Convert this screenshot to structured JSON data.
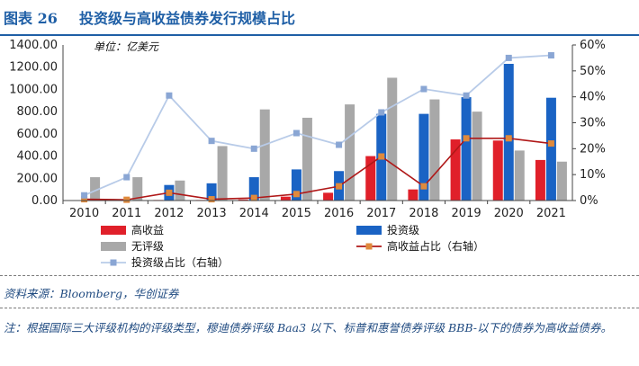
{
  "figure": {
    "number": "图表 26",
    "title": "投资级与高收益债券发行规模占比"
  },
  "chart_data": {
    "type": "bar",
    "unit_label": "单位：亿美元",
    "categories": [
      "2010",
      "2011",
      "2012",
      "2013",
      "2014",
      "2015",
      "2016",
      "2017",
      "2018",
      "2019",
      "2020",
      "2021"
    ],
    "ylim_left": [
      0,
      1400
    ],
    "ylim_right": [
      0,
      0.6
    ],
    "y_ticks_left": [
      "0.00",
      "200.00",
      "400.00",
      "600.00",
      "800.00",
      "1000.00",
      "1200.00",
      "1400.00"
    ],
    "y_ticks_right": [
      "0%",
      "10%",
      "20%",
      "30%",
      "40%",
      "50%",
      "60%"
    ],
    "series": [
      {
        "name": "高收益",
        "kind": "bar",
        "axis": "left",
        "color": "#e0202a",
        "values": [
          0,
          5,
          5,
          5,
          10,
          35,
          70,
          400,
          100,
          550,
          540,
          365
        ]
      },
      {
        "name": "投资级",
        "kind": "bar",
        "axis": "left",
        "color": "#1a63c4",
        "values": [
          0,
          5,
          140,
          155,
          210,
          280,
          265,
          780,
          780,
          930,
          1230,
          925
        ]
      },
      {
        "name": "无评级",
        "kind": "bar",
        "axis": "left",
        "color": "#a8a8a8",
        "values": [
          210,
          210,
          180,
          490,
          820,
          745,
          865,
          1105,
          910,
          800,
          450,
          350
        ]
      },
      {
        "name": "高收益占比（右轴）",
        "kind": "line",
        "axis": "right",
        "color": "#b01818",
        "marker_color": "#e08a3c",
        "values": [
          0.005,
          0.003,
          0.03,
          0.005,
          0.01,
          0.025,
          0.055,
          0.17,
          0.055,
          0.24,
          0.24,
          0.22
        ]
      },
      {
        "name": "投资级占比（右轴）",
        "kind": "line",
        "axis": "right",
        "color": "#b8cbe8",
        "marker_color": "#8aa6d4",
        "values": [
          0.02,
          0.09,
          0.405,
          0.23,
          0.2,
          0.26,
          0.215,
          0.34,
          0.43,
          0.405,
          0.55,
          0.56
        ]
      }
    ]
  },
  "source": "资料来源：Bloomberg，华创证券",
  "note": "注：根据国际三大评级机构的评级类型，穆迪债券评级 Baa3 以下、标普和惠誉债券评级 BBB-以下的债券为高收益债券。"
}
